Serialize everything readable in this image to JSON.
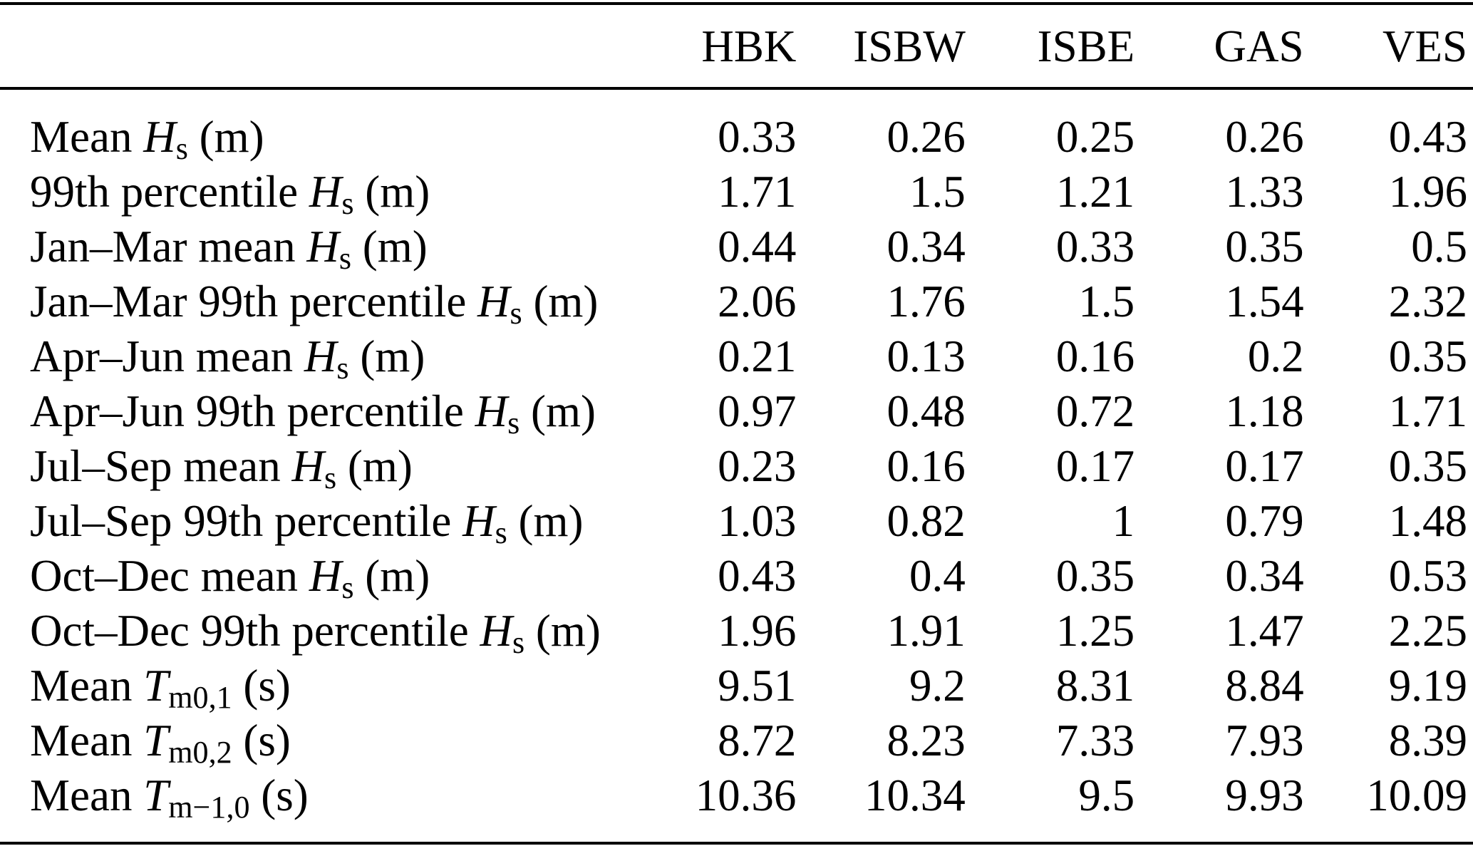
{
  "table": {
    "columns": [
      "HBK",
      "ISBW",
      "ISBE",
      "GAS",
      "VES"
    ],
    "rows": [
      {
        "label": {
          "prefix": "Mean ",
          "var": "H",
          "sub": "s",
          "suffix": " (m)"
        },
        "values": [
          "0.33",
          "0.26",
          "0.25",
          "0.26",
          "0.43"
        ]
      },
      {
        "label": {
          "prefix": "99th percentile ",
          "var": "H",
          "sub": "s",
          "suffix": " (m)"
        },
        "values": [
          "1.71",
          "1.5",
          "1.21",
          "1.33",
          "1.96"
        ]
      },
      {
        "label": {
          "prefix": "Jan–Mar mean ",
          "var": "H",
          "sub": "s",
          "suffix": " (m)"
        },
        "values": [
          "0.44",
          "0.34",
          "0.33",
          "0.35",
          "0.5"
        ]
      },
      {
        "label": {
          "prefix": "Jan–Mar 99th percentile ",
          "var": "H",
          "sub": "s",
          "suffix": " (m)"
        },
        "values": [
          "2.06",
          "1.76",
          "1.5",
          "1.54",
          "2.32"
        ]
      },
      {
        "label": {
          "prefix": "Apr–Jun mean ",
          "var": "H",
          "sub": "s",
          "suffix": " (m)"
        },
        "values": [
          "0.21",
          "0.13",
          "0.16",
          "0.2",
          "0.35"
        ]
      },
      {
        "label": {
          "prefix": "Apr–Jun 99th percentile ",
          "var": "H",
          "sub": "s",
          "suffix": " (m)"
        },
        "values": [
          "0.97",
          "0.48",
          "0.72",
          "1.18",
          "1.71"
        ]
      },
      {
        "label": {
          "prefix": "Jul–Sep mean ",
          "var": "H",
          "sub": "s",
          "suffix": " (m)"
        },
        "values": [
          "0.23",
          "0.16",
          "0.17",
          "0.17",
          "0.35"
        ]
      },
      {
        "label": {
          "prefix": "Jul–Sep 99th percentile ",
          "var": "H",
          "sub": "s",
          "suffix": " (m)"
        },
        "values": [
          "1.03",
          "0.82",
          "1",
          "0.79",
          "1.48"
        ]
      },
      {
        "label": {
          "prefix": "Oct–Dec mean ",
          "var": "H",
          "sub": "s",
          "suffix": " (m)"
        },
        "values": [
          "0.43",
          "0.4",
          "0.35",
          "0.34",
          "0.53"
        ]
      },
      {
        "label": {
          "prefix": "Oct–Dec 99th percentile ",
          "var": "H",
          "sub": "s",
          "suffix": " (m)"
        },
        "values": [
          "1.96",
          "1.91",
          "1.25",
          "1.47",
          "2.25"
        ]
      },
      {
        "label": {
          "prefix": "Mean ",
          "var": "T",
          "sub": "m0,1",
          "suffix": " (s)"
        },
        "values": [
          "9.51",
          "9.2",
          "8.31",
          "8.84",
          "9.19"
        ]
      },
      {
        "label": {
          "prefix": "Mean ",
          "var": "T",
          "sub": "m0,2",
          "suffix": " (s)"
        },
        "values": [
          "8.72",
          "8.23",
          "7.33",
          "7.93",
          "8.39"
        ]
      },
      {
        "label": {
          "prefix": "Mean ",
          "var": "T",
          "sub": "m−1,0",
          "suffix": " (s)"
        },
        "values": [
          "10.36",
          "10.34",
          "9.5",
          "9.93",
          "10.09"
        ]
      }
    ]
  },
  "chart_data": {
    "type": "table",
    "columns": [
      "HBK",
      "ISBW",
      "ISBE",
      "GAS",
      "VES"
    ],
    "row_labels": [
      "Mean Hs (m)",
      "99th percentile Hs (m)",
      "Jan–Mar mean Hs (m)",
      "Jan–Mar 99th percentile Hs (m)",
      "Apr–Jun mean Hs (m)",
      "Apr–Jun 99th percentile Hs (m)",
      "Jul–Sep mean Hs (m)",
      "Jul–Sep 99th percentile Hs (m)",
      "Oct–Dec mean Hs (m)",
      "Oct–Dec 99th percentile Hs (m)",
      "Mean Tm0,1 (s)",
      "Mean Tm0,2 (s)",
      "Mean Tm−1,0 (s)"
    ],
    "values": [
      [
        0.33,
        0.26,
        0.25,
        0.26,
        0.43
      ],
      [
        1.71,
        1.5,
        1.21,
        1.33,
        1.96
      ],
      [
        0.44,
        0.34,
        0.33,
        0.35,
        0.5
      ],
      [
        2.06,
        1.76,
        1.5,
        1.54,
        2.32
      ],
      [
        0.21,
        0.13,
        0.16,
        0.2,
        0.35
      ],
      [
        0.97,
        0.48,
        0.72,
        1.18,
        1.71
      ],
      [
        0.23,
        0.16,
        0.17,
        0.17,
        0.35
      ],
      [
        1.03,
        0.82,
        1,
        0.79,
        1.48
      ],
      [
        0.43,
        0.4,
        0.35,
        0.34,
        0.53
      ],
      [
        1.96,
        1.91,
        1.25,
        1.47,
        2.25
      ],
      [
        9.51,
        9.2,
        8.31,
        8.84,
        9.19
      ],
      [
        8.72,
        8.23,
        7.33,
        7.93,
        8.39
      ],
      [
        10.36,
        10.34,
        9.5,
        9.93,
        10.09
      ]
    ]
  },
  "colors": {
    "text": "#000000",
    "background": "#ffffff",
    "rule": "#000000"
  }
}
